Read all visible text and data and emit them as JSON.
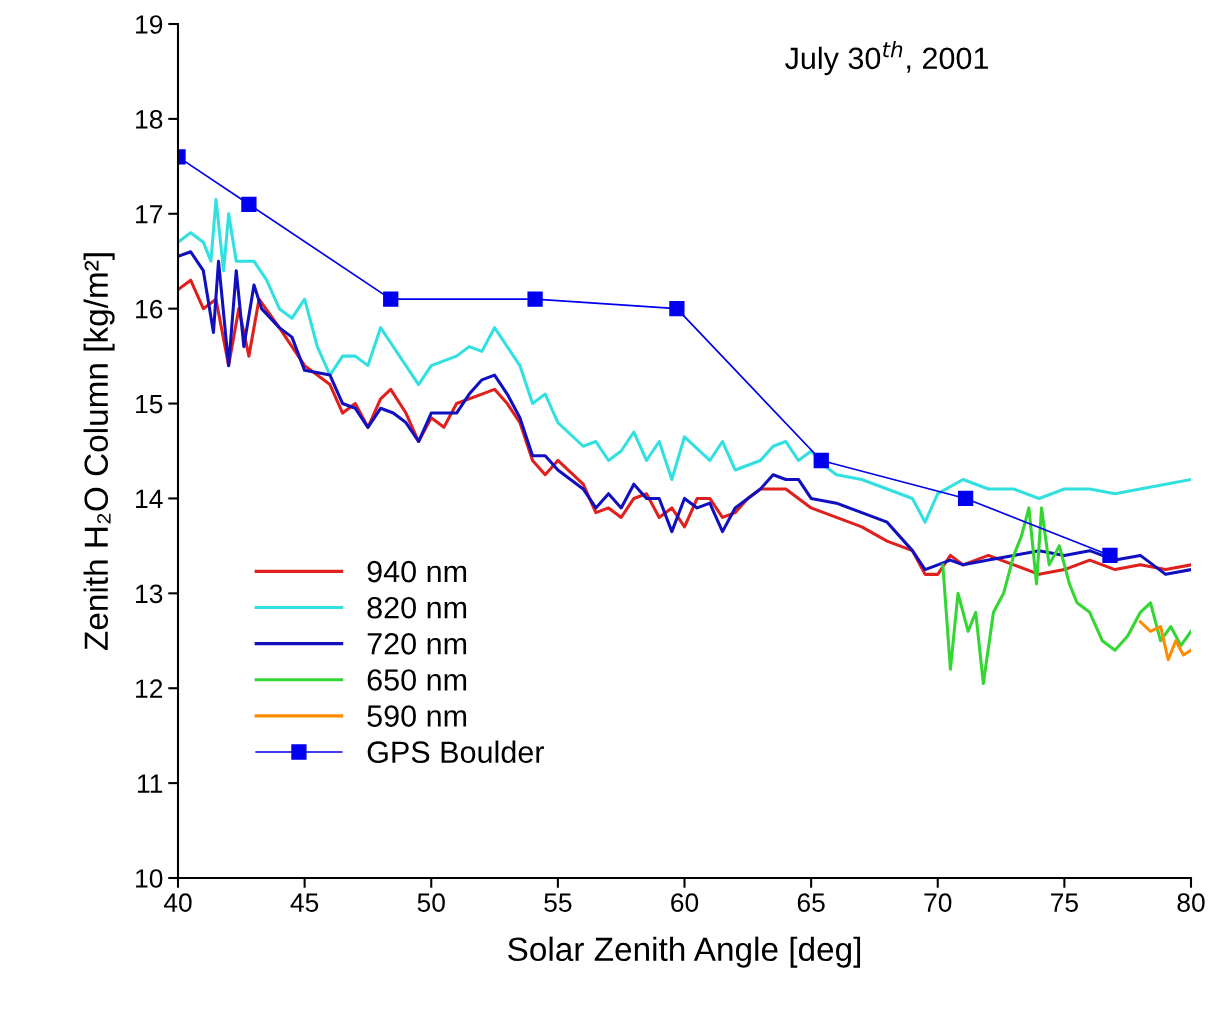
{
  "chart_data": {
    "type": "line",
    "title": "July 30$^{th}$, 2001",
    "xlabel": "Solar Zenith Angle [deg]",
    "ylabel": "Zenith H₂O Column [kg/m²]",
    "xlim": [
      40,
      80
    ],
    "xticks": [
      40,
      45,
      50,
      55,
      60,
      65,
      70,
      75,
      80
    ],
    "ylim": [
      10,
      19
    ],
    "yticks": [
      10,
      11,
      12,
      13,
      14,
      15,
      16,
      17,
      18,
      19
    ],
    "grid": false,
    "legend": "center left",
    "line_style": "solid",
    "series": [
      {
        "name": "940 nm",
        "color": "#e0201c",
        "marker": "none",
        "x": [
          40,
          40.5,
          41,
          41.5,
          42,
          42.4,
          42.8,
          43.2,
          44,
          44.5,
          45,
          46,
          46.5,
          47,
          47.5,
          48,
          48.4,
          49,
          49.5,
          50,
          50.5,
          51,
          52,
          52.5,
          53,
          53.5,
          54,
          54.5,
          55,
          56,
          56.5,
          57,
          57.5,
          58,
          58.5,
          59,
          59.5,
          60,
          60.5,
          61,
          61.5,
          62,
          62.5,
          63,
          64,
          64.5,
          65,
          66,
          67,
          68,
          69,
          69.5,
          70,
          70.5,
          71,
          72,
          73,
          74,
          75,
          76,
          77,
          78,
          79,
          80
        ],
        "values": [
          16.2,
          16.3,
          16.0,
          16.1,
          15.4,
          16.0,
          15.5,
          16.1,
          15.8,
          15.6,
          15.4,
          15.2,
          14.9,
          15.0,
          14.75,
          15.05,
          15.15,
          14.9,
          14.6,
          14.85,
          14.75,
          15.0,
          15.1,
          15.15,
          15.0,
          14.8,
          14.4,
          14.25,
          14.4,
          14.15,
          13.85,
          13.9,
          13.8,
          14.0,
          14.05,
          13.8,
          13.9,
          13.7,
          14.0,
          14.0,
          13.8,
          13.85,
          14.0,
          14.1,
          14.1,
          14.0,
          13.9,
          13.8,
          13.7,
          13.55,
          13.45,
          13.2,
          13.2,
          13.4,
          13.3,
          13.4,
          13.3,
          13.2,
          13.25,
          13.35,
          13.25,
          13.3,
          13.25,
          13.3
        ]
      },
      {
        "name": "820 nm",
        "color": "#33e0e0",
        "marker": "none",
        "x": [
          40,
          40.5,
          41,
          41.3,
          41.5,
          41.8,
          42,
          42.3,
          43,
          43.5,
          44,
          44.5,
          45,
          45.5,
          46,
          46.5,
          47,
          47.5,
          48,
          48.5,
          49,
          49.5,
          50,
          51,
          51.5,
          52,
          52.5,
          53,
          53.5,
          54,
          54.5,
          55,
          56,
          56.5,
          57,
          57.5,
          58,
          58.5,
          59,
          59.5,
          60,
          61,
          61.5,
          62,
          63,
          63.5,
          64,
          64.5,
          65,
          65.5,
          66,
          67,
          68,
          69,
          69.5,
          70,
          71,
          72,
          73,
          74,
          75,
          76,
          77,
          78,
          79,
          80
        ],
        "values": [
          16.7,
          16.8,
          16.7,
          16.5,
          17.15,
          16.4,
          17.0,
          16.5,
          16.5,
          16.3,
          16.0,
          15.9,
          16.1,
          15.6,
          15.3,
          15.5,
          15.5,
          15.4,
          15.8,
          15.6,
          15.4,
          15.2,
          15.4,
          15.5,
          15.6,
          15.55,
          15.8,
          15.6,
          15.4,
          15.0,
          15.1,
          14.8,
          14.55,
          14.6,
          14.4,
          14.5,
          14.7,
          14.4,
          14.6,
          14.2,
          14.65,
          14.4,
          14.6,
          14.3,
          14.4,
          14.55,
          14.6,
          14.4,
          14.5,
          14.35,
          14.25,
          14.2,
          14.1,
          14.0,
          13.75,
          14.05,
          14.2,
          14.1,
          14.1,
          14.0,
          14.1,
          14.1,
          14.05,
          14.1,
          14.15,
          14.2
        ]
      },
      {
        "name": "720 nm",
        "color": "#1010c0",
        "marker": "none",
        "x": [
          40,
          40.5,
          41,
          41.4,
          41.6,
          42,
          42.3,
          42.6,
          43,
          43.3,
          44,
          44.5,
          45,
          46,
          46.5,
          47,
          47.5,
          48,
          48.5,
          49,
          49.5,
          50,
          51,
          51.5,
          52,
          52.5,
          53,
          53.5,
          54,
          54.5,
          55,
          56,
          56.5,
          57,
          57.5,
          58,
          58.5,
          59,
          59.5,
          60,
          60.5,
          61,
          61.5,
          62,
          62.5,
          63,
          63.5,
          64,
          64.5,
          65,
          66,
          67,
          68,
          69,
          69.5,
          70,
          70.5,
          71,
          72,
          73,
          74,
          75,
          76,
          77,
          78,
          79,
          80
        ],
        "values": [
          16.55,
          16.6,
          16.4,
          15.75,
          16.5,
          15.4,
          16.4,
          15.6,
          16.25,
          16.0,
          15.8,
          15.7,
          15.35,
          15.3,
          15.0,
          14.95,
          14.75,
          14.95,
          14.9,
          14.8,
          14.6,
          14.9,
          14.9,
          15.1,
          15.25,
          15.3,
          15.1,
          14.85,
          14.45,
          14.45,
          14.3,
          14.1,
          13.9,
          14.05,
          13.9,
          14.15,
          14.0,
          14.0,
          13.65,
          14.0,
          13.9,
          13.95,
          13.65,
          13.9,
          14.0,
          14.1,
          14.25,
          14.2,
          14.2,
          14.0,
          13.95,
          13.85,
          13.75,
          13.45,
          13.25,
          13.3,
          13.35,
          13.3,
          13.35,
          13.4,
          13.45,
          13.4,
          13.45,
          13.35,
          13.4,
          13.2,
          13.25
        ]
      },
      {
        "name": "650 nm",
        "color": "#33d633",
        "marker": "none",
        "x": [
          70.2,
          70.5,
          70.8,
          71.2,
          71.5,
          71.8,
          72.2,
          72.6,
          73,
          73.3,
          73.6,
          73.9,
          74.1,
          74.4,
          74.8,
          75.2,
          75.5,
          76,
          76.5,
          77,
          77.5,
          78,
          78.4,
          78.8,
          79.2,
          79.6,
          80
        ],
        "values": [
          13.3,
          12.2,
          13.0,
          12.6,
          12.8,
          12.05,
          12.8,
          13.0,
          13.4,
          13.6,
          13.9,
          13.1,
          13.9,
          13.3,
          13.5,
          13.1,
          12.9,
          12.8,
          12.5,
          12.4,
          12.55,
          12.8,
          12.9,
          12.5,
          12.65,
          12.45,
          12.6
        ]
      },
      {
        "name": "590 nm",
        "color": "#ff8c00",
        "marker": "none",
        "x": [
          78,
          78.4,
          78.8,
          79.1,
          79.4,
          79.7,
          80
        ],
        "values": [
          12.7,
          12.6,
          12.65,
          12.3,
          12.5,
          12.35,
          12.4
        ]
      },
      {
        "name": "GPS Boulder",
        "color": "#0000ee",
        "marker": "square",
        "x": [
          40,
          42.8,
          48.4,
          54.1,
          59.7,
          65.4,
          71.1,
          76.8
        ],
        "values": [
          17.6,
          17.1,
          16.1,
          16.1,
          16.0,
          14.4,
          14.0,
          13.4
        ]
      }
    ]
  }
}
